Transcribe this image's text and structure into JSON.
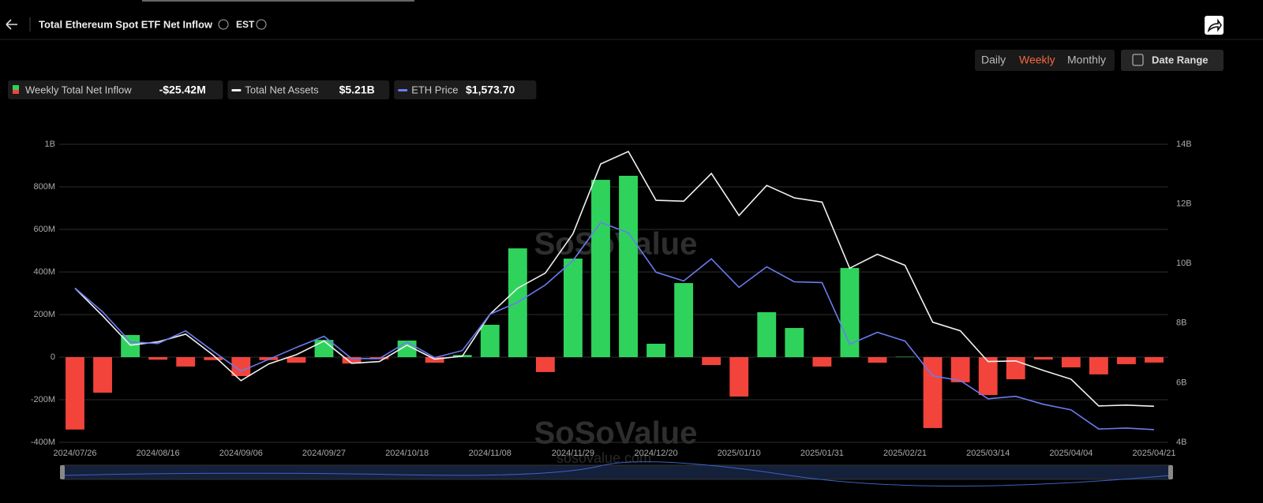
{
  "ui": {
    "title": "Total Ethereum Spot ETF Net Inflow",
    "timezone": "EST",
    "periods": [
      "Daily",
      "Weekly",
      "Monthly"
    ],
    "active_period": 1,
    "date_range": "Date Range",
    "legend_readout": [
      "-$25.42M",
      "$5.21B",
      "$1,573.70"
    ],
    "watermark": "SoSoValue",
    "watermark_url": "sosovalue.com"
  },
  "chart_data": {
    "type": "bar-line",
    "categories": [
      "2024/07/26",
      null,
      null,
      "2024/08/16",
      null,
      null,
      "2024/09/06",
      null,
      null,
      "2024/09/27",
      null,
      null,
      "2024/10/18",
      null,
      null,
      "2024/11/08",
      null,
      null,
      "2024/11/29",
      null,
      null,
      "2024/12/20",
      null,
      null,
      "2025/01/10",
      null,
      null,
      "2025/01/31",
      null,
      null,
      "2025/02/21",
      null,
      null,
      "2025/03/14",
      null,
      null,
      "2025/04/04",
      null,
      null,
      "2025/04/21"
    ],
    "series": [
      {
        "name": "Weekly Total Net Inflow",
        "type": "bar",
        "color": "#2fd35c",
        "negative_color": "#f2443b",
        "values": [
          -340,
          -167,
          104,
          -12,
          -44,
          -14,
          -89,
          -14,
          -26,
          81,
          -30,
          -10,
          78,
          -26,
          10,
          152,
          511,
          -70,
          463,
          833,
          852,
          63,
          348,
          -37,
          -185,
          211,
          137,
          -44,
          419,
          -26,
          2,
          -333,
          -118,
          -178,
          -104,
          -11,
          -48,
          -81,
          -33,
          -25.42
        ]
      },
      {
        "name": "Total Net Assets",
        "type": "line",
        "axis": "y2",
        "color": "#f2f2f2",
        "values": [
          9.17,
          8.24,
          7.26,
          7.37,
          7.63,
          6.92,
          6.07,
          6.63,
          6.94,
          7.4,
          6.65,
          6.71,
          7.26,
          6.79,
          6.89,
          8.3,
          9.17,
          9.68,
          11.0,
          13.34,
          13.76,
          12.12,
          12.09,
          13.02,
          11.61,
          12.62,
          12.2,
          12.06,
          9.84,
          10.31,
          9.94,
          8.03,
          7.74,
          6.71,
          6.73,
          6.41,
          6.12,
          5.22,
          5.25,
          5.21
        ]
      },
      {
        "name": "ETH Price",
        "type": "line",
        "axis": "y3",
        "color": "#6b7bf0",
        "values": [
          3231,
          2953,
          2601,
          2582,
          2730,
          2490,
          2259,
          2397,
          2536,
          2666,
          2406,
          2406,
          2601,
          2416,
          2500,
          2926,
          3065,
          3268,
          3555,
          4000,
          3880,
          3417,
          3315,
          3574,
          3240,
          3481,
          3305,
          3296,
          2574,
          2713,
          2611,
          2203,
          2148,
          1935,
          1963,
          1870,
          1805,
          1580,
          1592,
          1573.7
        ]
      }
    ],
    "ylim": [
      -400,
      1000
    ],
    "yticks": [
      {
        "value": -400,
        "label": "-400M"
      },
      {
        "value": -200,
        "label": "-200M"
      },
      0,
      {
        "value": 200,
        "label": "200M"
      },
      {
        "value": 400,
        "label": "400M"
      },
      {
        "value": 600,
        "label": "600M"
      },
      {
        "value": 800,
        "label": "800M"
      },
      {
        "value": 1000,
        "label": "1B"
      }
    ],
    "y2lim": [
      4,
      14
    ],
    "y2ticks": [
      {
        "value": 4,
        "label": "4B"
      },
      {
        "value": 6,
        "label": "6B"
      },
      {
        "value": 8,
        "label": "8B"
      },
      {
        "value": 10,
        "label": "10B"
      },
      {
        "value": 12,
        "label": "12B"
      },
      {
        "value": 14,
        "label": "14B"
      }
    ],
    "y3lim": [
      1425,
      4916
    ],
    "grid": true
  }
}
